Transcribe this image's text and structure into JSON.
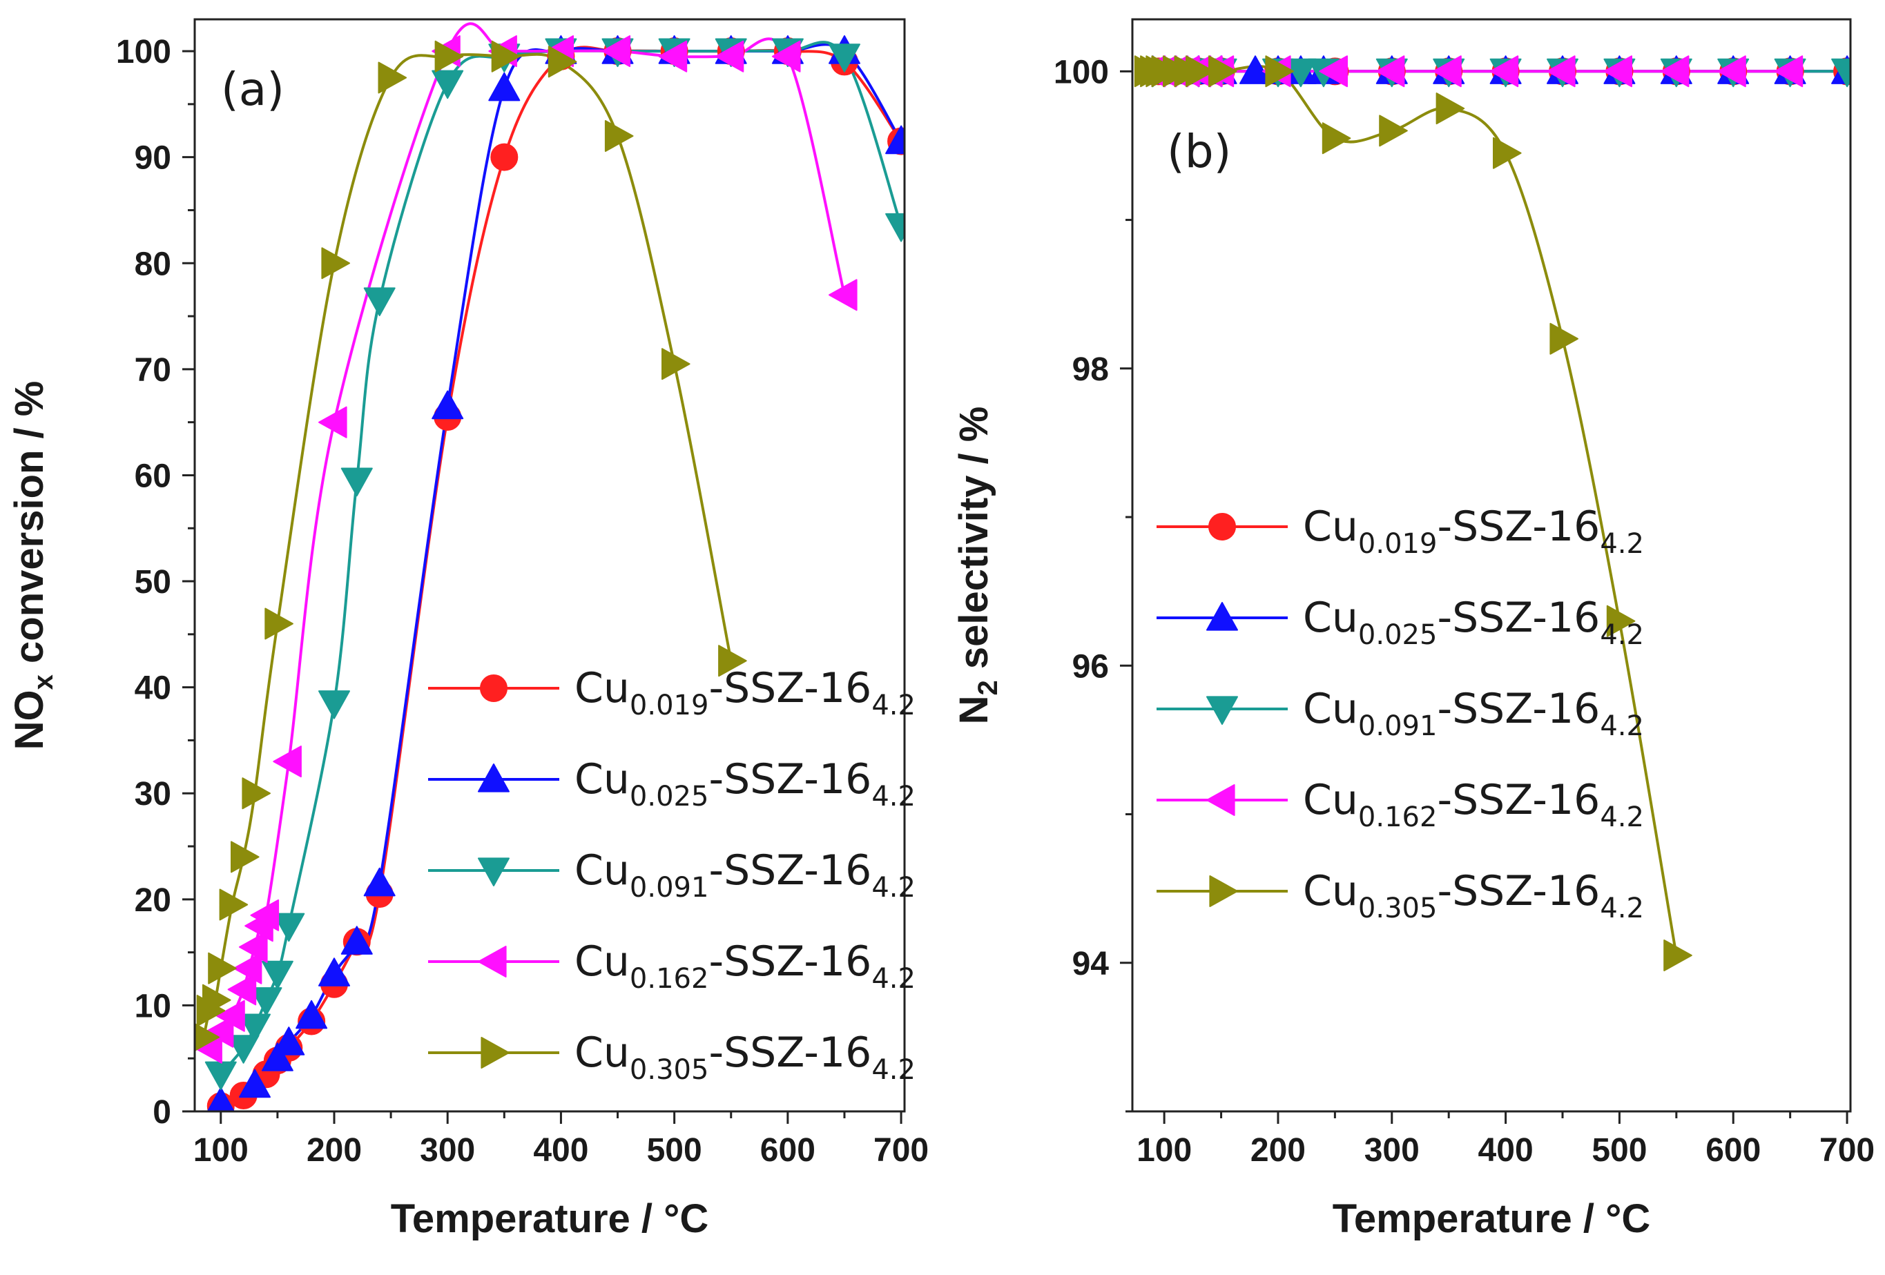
{
  "chart_data": [
    {
      "type": "line",
      "panel_label": "(a)",
      "xlabel": "Temperature / °C",
      "ylabel_main": "NO",
      "ylabel_sub": "x",
      "ylabel_rest": " conversion / %",
      "xlim": [
        77,
        703
      ],
      "ylim": [
        0,
        103
      ],
      "xticks": [
        100,
        200,
        300,
        400,
        500,
        600,
        700
      ],
      "yticks": [
        0,
        10,
        20,
        30,
        40,
        50,
        60,
        70,
        80,
        90,
        100
      ],
      "legend_position": "center-right",
      "series": [
        {
          "name": "Cu0.019-SSZ-16 4.2",
          "label_main": "Cu",
          "label_sub": "0.019",
          "label_rest": "-SSZ-16",
          "label_sub2": "4.2",
          "color": "#ff2020",
          "marker": "circle",
          "x": [
            100,
            120,
            140,
            150,
            160,
            180,
            200,
            220,
            240,
            300,
            350,
            400,
            450,
            500,
            550,
            600,
            650,
            700
          ],
          "y": [
            0.5,
            1.5,
            3.5,
            4.8,
            6.0,
            8.5,
            12.0,
            16.0,
            20.5,
            65.5,
            90.0,
            99.5,
            100,
            100,
            100,
            100,
            99.0,
            91.5
          ]
        },
        {
          "name": "Cu0.025-SSZ-16 4.2",
          "label_main": "Cu",
          "label_sub": "0.025",
          "label_rest": "-SSZ-16",
          "label_sub2": "4.2",
          "color": "#1010ff",
          "marker": "triangle-up",
          "x": [
            100,
            130,
            150,
            160,
            180,
            200,
            220,
            240,
            300,
            350,
            400,
            450,
            500,
            550,
            600,
            650,
            700
          ],
          "y": [
            0.8,
            2.5,
            5.0,
            6.5,
            9.0,
            13.0,
            16.0,
            21.5,
            66.5,
            96.5,
            100,
            100,
            100,
            100,
            100,
            100,
            91.5
          ]
        },
        {
          "name": "Cu0.091-SSZ-16 4.2",
          "label_main": "Cu",
          "label_sub": "0.091",
          "label_rest": "-SSZ-16",
          "label_sub2": "4.2",
          "color": "#1a9c94",
          "marker": "triangle-down",
          "x": [
            100,
            120,
            130,
            140,
            150,
            160,
            200,
            220,
            240,
            300,
            350,
            400,
            450,
            500,
            550,
            600,
            650,
            700
          ],
          "y": [
            3.5,
            6.0,
            8.0,
            10.5,
            13.0,
            17.5,
            38.5,
            59.5,
            76.5,
            97.0,
            99.5,
            100,
            100,
            100,
            100,
            100,
            99.5,
            83.5
          ]
        },
        {
          "name": "Cu0.162-SSZ-16 4.2",
          "label_main": "Cu",
          "label_sub": "0.162",
          "label_rest": "-SSZ-16",
          "label_sub2": "4.2",
          "color": "#ff10ff",
          "marker": "triangle-left",
          "x": [
            90,
            100,
            110,
            120,
            125,
            130,
            135,
            140,
            160,
            200,
            300,
            350,
            400,
            450,
            500,
            550,
            600,
            650
          ],
          "y": [
            6.0,
            7.5,
            9.0,
            11.5,
            13.5,
            15.5,
            17.5,
            18.5,
            33.0,
            65.0,
            100,
            100,
            100,
            100,
            99.5,
            99.5,
            99.5,
            77.0
          ]
        },
        {
          "name": "Cu0.305-SSZ-16 4.2",
          "label_main": "Cu",
          "label_sub": "0.305",
          "label_rest": "-SSZ-16",
          "label_sub2": "4.2",
          "color": "#8c8c0c",
          "marker": "triangle-right",
          "x": [
            85,
            90,
            95,
            100,
            110,
            120,
            130,
            150,
            200,
            250,
            300,
            350,
            400,
            450,
            500,
            550
          ],
          "y": [
            7.0,
            9.5,
            10.5,
            13.5,
            19.5,
            24.0,
            30.0,
            46.0,
            80.0,
            97.5,
            99.5,
            99.5,
            99.0,
            92.0,
            70.5,
            42.5
          ]
        }
      ]
    },
    {
      "type": "line",
      "panel_label": "(b)",
      "xlabel": "Temperature / °C",
      "ylabel_main": "N",
      "ylabel_sub": "2",
      "ylabel_rest": " selectivity / %",
      "xlim": [
        72,
        703
      ],
      "ylim": [
        93.0,
        100.35
      ],
      "xticks": [
        100,
        200,
        300,
        400,
        500,
        600,
        700
      ],
      "yticks": [
        94,
        96,
        98,
        100
      ],
      "yticks_minor": [
        93,
        95,
        97,
        99
      ],
      "legend_position": "center-left",
      "series": [
        {
          "name": "Cu0.019-SSZ-16 4.2",
          "label_main": "Cu",
          "label_sub": "0.019",
          "label_rest": "-SSZ-16",
          "label_sub2": "4.2",
          "color": "#ff2020",
          "marker": "circle",
          "x": [
            90,
            95,
            100,
            110,
            120,
            130,
            140,
            150,
            200,
            250,
            300,
            350,
            400,
            450,
            500,
            550,
            600,
            650,
            700
          ],
          "y": [
            100,
            100,
            100,
            100,
            100,
            100,
            100,
            100,
            100,
            100,
            100,
            100,
            100,
            100,
            100,
            100,
            100,
            100,
            100
          ]
        },
        {
          "name": "Cu0.025-SSZ-16 4.2",
          "label_main": "Cu",
          "label_sub": "0.025",
          "label_rest": "-SSZ-16",
          "label_sub2": "4.2",
          "color": "#1010ff",
          "marker": "triangle-up",
          "x": [
            90,
            100,
            110,
            120,
            130,
            140,
            150,
            180,
            200,
            220,
            240,
            300,
            350,
            400,
            450,
            500,
            550,
            600,
            650,
            700
          ],
          "y": [
            100,
            100,
            100,
            100,
            100,
            100,
            100,
            100,
            100,
            100,
            100,
            100,
            100,
            100,
            100,
            100,
            100,
            100,
            100,
            100
          ]
        },
        {
          "name": "Cu0.091-SSZ-16 4.2",
          "label_main": "Cu",
          "label_sub": "0.091",
          "label_rest": "-SSZ-16",
          "label_sub2": "4.2",
          "color": "#1a9c94",
          "marker": "triangle-down",
          "x": [
            90,
            100,
            110,
            120,
            130,
            140,
            150,
            200,
            220,
            240,
            300,
            350,
            400,
            450,
            500,
            550,
            600,
            650,
            700
          ],
          "y": [
            100,
            100,
            100,
            100,
            100,
            100,
            100,
            100,
            100,
            100,
            100,
            100,
            100,
            100,
            100,
            100,
            100,
            100,
            100
          ]
        },
        {
          "name": "Cu0.162-SSZ-16 4.2",
          "label_main": "Cu",
          "label_sub": "0.162",
          "label_rest": "-SSZ-16",
          "label_sub2": "4.2",
          "color": "#ff10ff",
          "marker": "triangle-left",
          "x": [
            90,
            100,
            110,
            120,
            130,
            140,
            150,
            200,
            250,
            300,
            350,
            400,
            450,
            500,
            550,
            600,
            650
          ],
          "y": [
            100,
            100,
            100,
            100,
            100,
            100,
            100,
            100,
            100,
            100,
            100,
            100,
            100,
            100,
            100,
            100,
            100
          ]
        },
        {
          "name": "Cu0.305-SSZ-16 4.2",
          "label_main": "Cu",
          "label_sub": "0.305",
          "label_rest": "-SSZ-16",
          "label_sub2": "4.2",
          "color": "#8c8c0c",
          "marker": "triangle-right",
          "x": [
            85,
            90,
            95,
            100,
            110,
            120,
            130,
            150,
            200,
            250,
            300,
            350,
            400,
            450,
            500,
            550
          ],
          "y": [
            100,
            100,
            100,
            100,
            100,
            100,
            100,
            100,
            100,
            99.55,
            99.6,
            99.75,
            99.45,
            98.2,
            96.3,
            94.05
          ]
        }
      ]
    }
  ]
}
